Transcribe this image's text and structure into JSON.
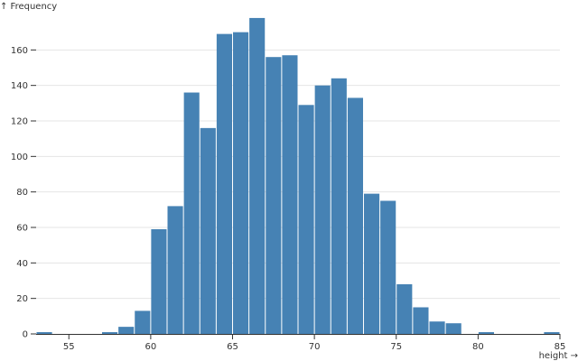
{
  "chart_data": {
    "type": "bar",
    "title": "",
    "xlabel": "height →",
    "ylabel": "↑ Frequency",
    "bin_width": 1,
    "xlim": [
      53,
      85
    ],
    "ylim": [
      0,
      180
    ],
    "x_ticks": [
      55,
      60,
      65,
      70,
      75,
      80,
      85
    ],
    "y_ticks": [
      0,
      20,
      40,
      60,
      80,
      100,
      120,
      140,
      160
    ],
    "grid": "horizontal",
    "bar_color": "#4682b4",
    "bins": [
      53,
      54,
      55,
      56,
      57,
      58,
      59,
      60,
      61,
      62,
      63,
      64,
      65,
      66,
      67,
      68,
      69,
      70,
      71,
      72,
      73,
      74,
      75,
      76,
      77,
      78,
      79,
      80,
      81,
      82,
      83,
      84
    ],
    "values": [
      1,
      0,
      0,
      0,
      1,
      4,
      13,
      59,
      72,
      136,
      116,
      169,
      170,
      178,
      156,
      157,
      129,
      140,
      144,
      133,
      79,
      75,
      28,
      15,
      7,
      6,
      0,
      1,
      0,
      0,
      0,
      1
    ]
  }
}
